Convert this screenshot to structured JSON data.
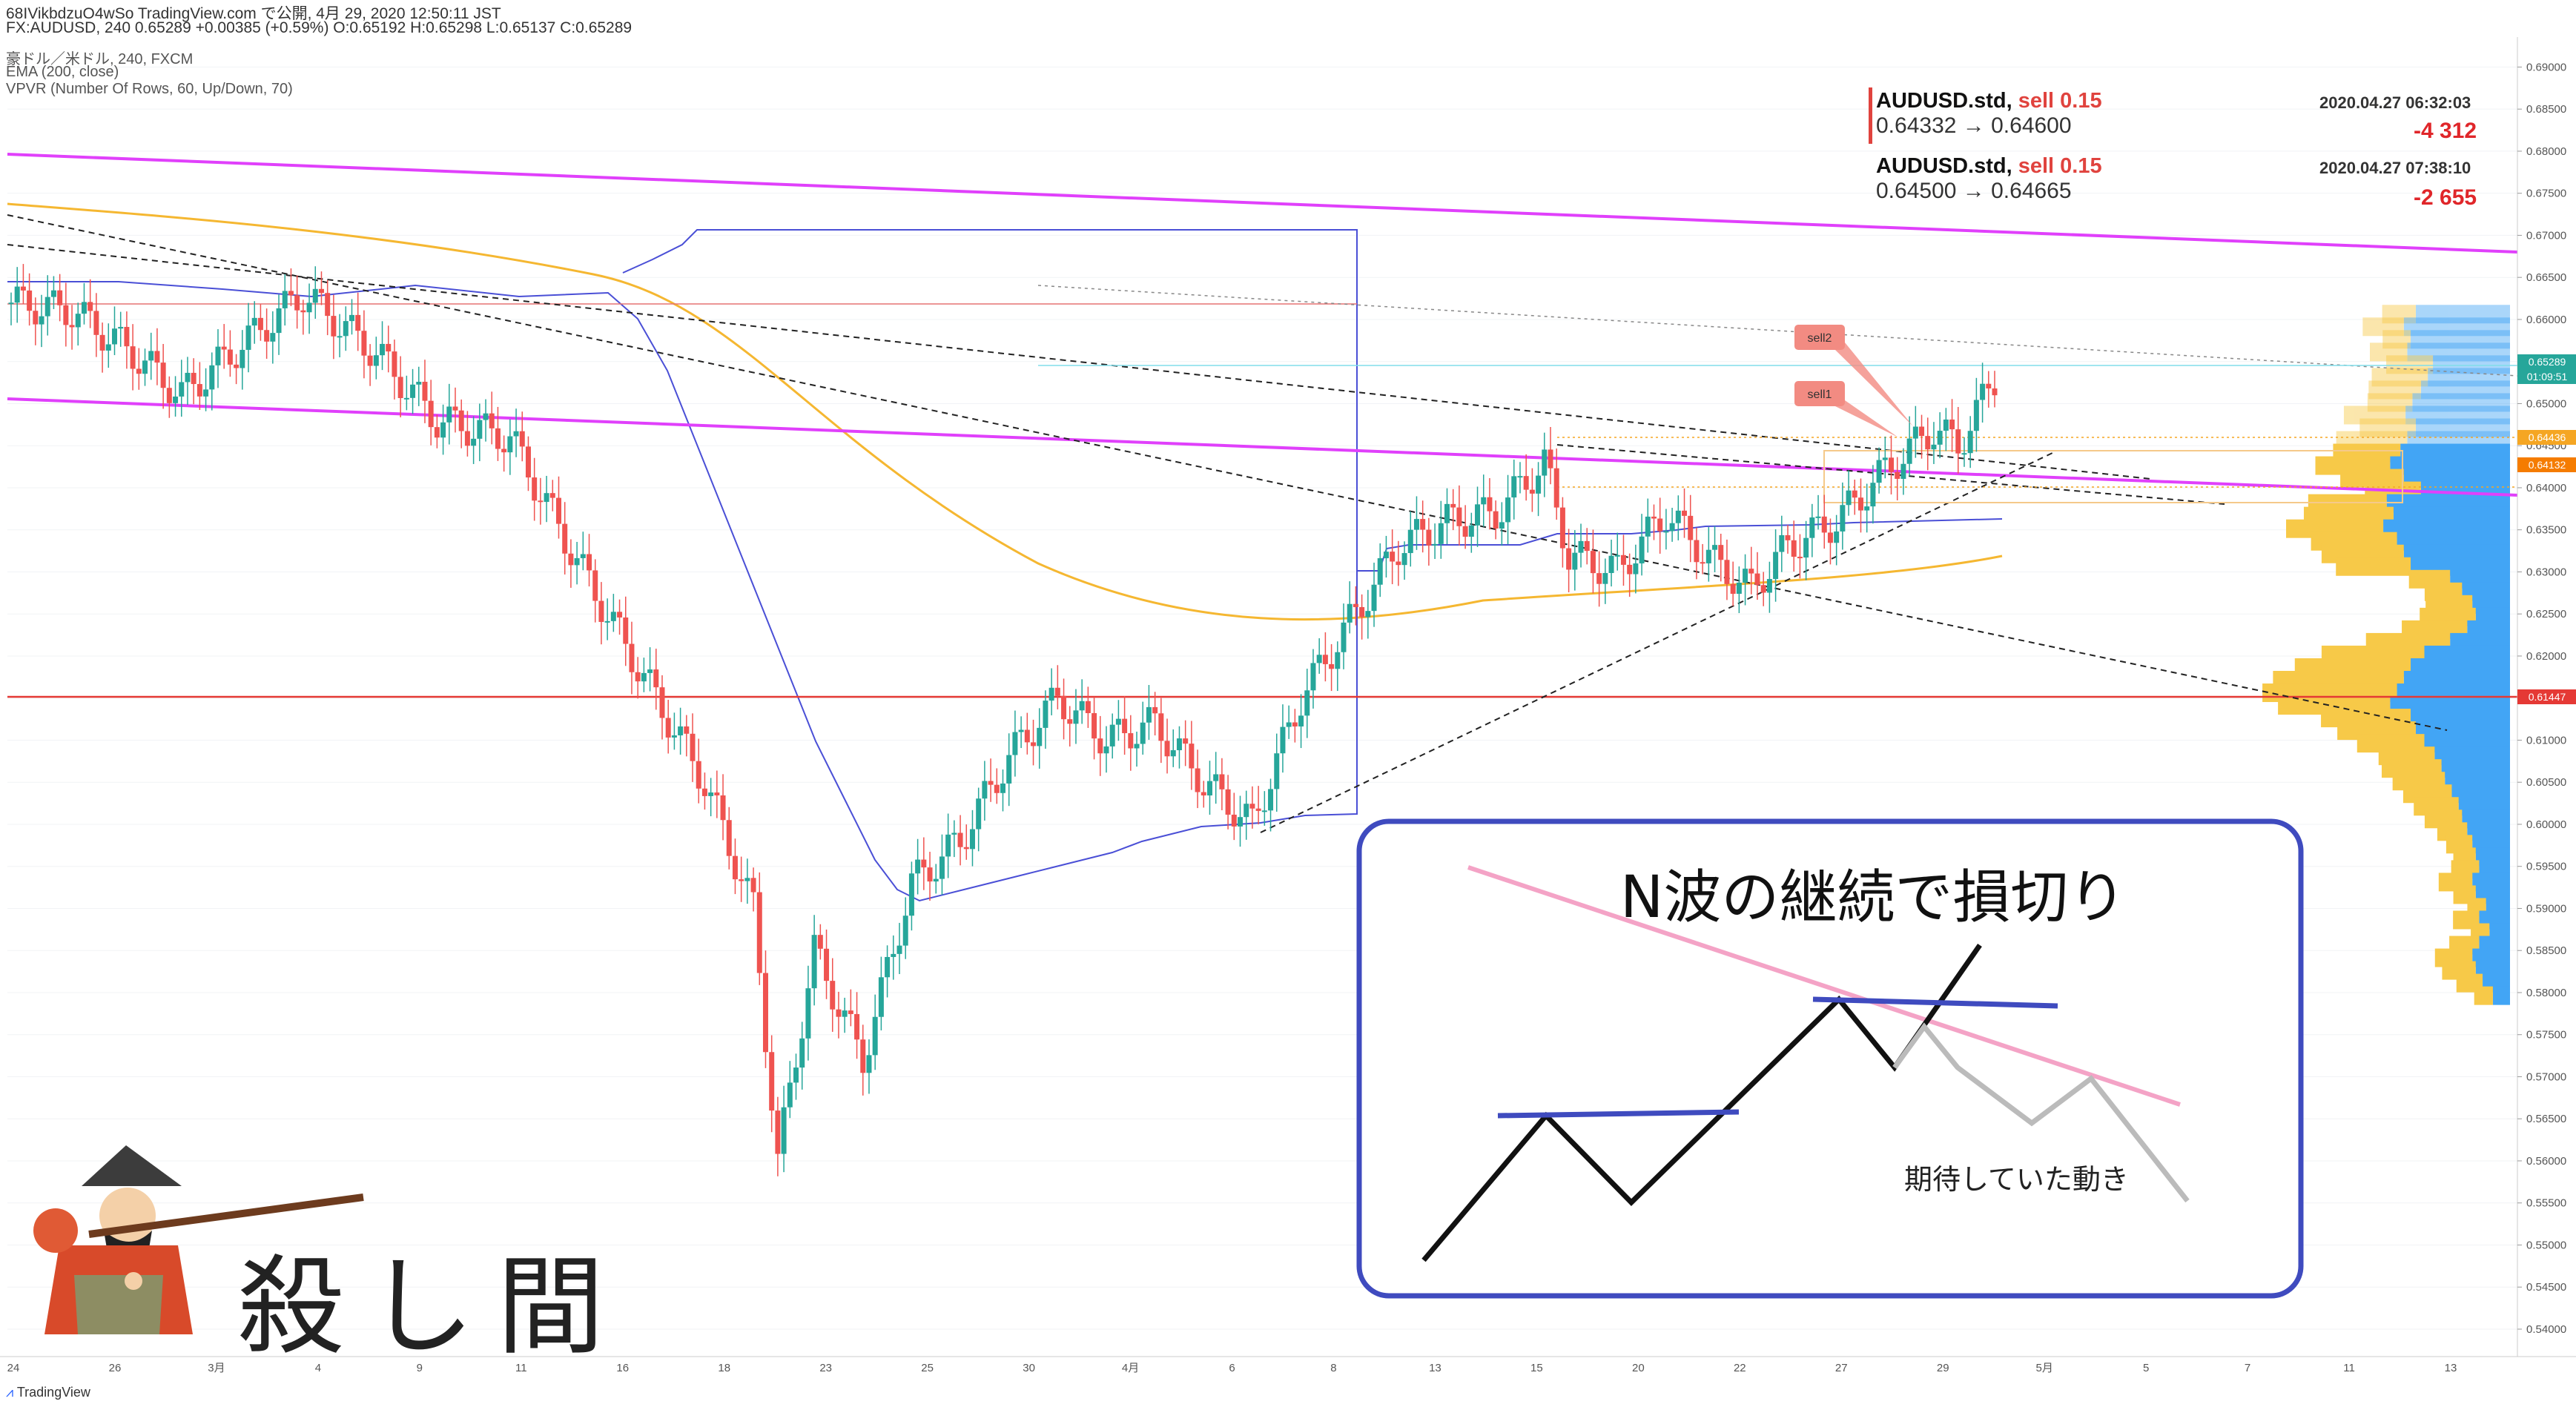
{
  "header": {
    "line1": "68IVikbdzuO4wSo TradingView.com で公開, 4月 29, 2020 12:50:11 JST",
    "line2": "FX:AUDUSD, 240 0.65289 +0.00385 (+0.59%) O:0.65192 H:0.65298 L:0.65137 C:0.65289"
  },
  "legend": {
    "symbol": "豪ドル／米ドル, 240, FXCM",
    "ema": "EMA (200, close)",
    "vpvr": "VPVR (Number Of Rows, 60, Up/Down, 70)"
  },
  "trades": [
    {
      "symbol": "AUDUSD.std,",
      "side": "sell 0.15",
      "prices": "0.64332 → 0.64600",
      "time": "2020.04.27 06:32:03",
      "pl": "-4 312"
    },
    {
      "symbol": "AUDUSD.std,",
      "side": "sell 0.15",
      "prices": "0.64500 → 0.64665",
      "time": "2020.04.27 07:38:10",
      "pl": "-2 655"
    }
  ],
  "annotations": {
    "sell1": "sell1",
    "sell2": "sell2",
    "inset_title": "N波の継続で損切り",
    "inset_caption": "期待していた動き",
    "brand_text": "殺し間"
  },
  "price_labels": {
    "last_price": "0.65289",
    "countdown": "01:09:51",
    "level_orange1": "0.64436",
    "level_orange2": "0.64132",
    "level_red": "0.61447"
  },
  "footer": {
    "logo": "TradingView"
  },
  "colors": {
    "candle_up": "#26a69a",
    "candle_down": "#ef5350",
    "ema": "#f5b731",
    "channel": "#e040fb",
    "support": "#e53935",
    "vp_up": "#42a5f5",
    "vp_down": "#f7c948",
    "inset_border": "#3f4bbf"
  },
  "chart_data": {
    "type": "candlestick",
    "symbol": "FX:AUDUSD",
    "timeframe": "240",
    "x_tick_labels": [
      "24",
      "26",
      "3月",
      "4",
      "9",
      "11",
      "16",
      "18",
      "23",
      "25",
      "30",
      "4月",
      "6",
      "8",
      "13",
      "15",
      "20",
      "22",
      "27",
      "29",
      "5月",
      "5",
      "7",
      "11",
      "13"
    ],
    "y_tick_labels": [
      "0.69000",
      "0.68500",
      "0.68000",
      "0.67500",
      "0.67000",
      "0.66500",
      "0.66000",
      "0.65500",
      "0.65000",
      "0.64500",
      "0.64000",
      "0.63500",
      "0.63000",
      "0.62500",
      "0.62000",
      "0.61500",
      "0.61000",
      "0.60500",
      "0.60000",
      "0.59500",
      "0.59000",
      "0.58500",
      "0.58000",
      "0.57500",
      "0.57000",
      "0.56500",
      "0.56000",
      "0.55500",
      "0.55000",
      "0.54500",
      "0.54000"
    ],
    "ylim": [
      0.5385,
      0.6918
    ],
    "close_path": [
      {
        "t": 0,
        "close": 0.662
      },
      {
        "t": 5,
        "close": 0.661
      },
      {
        "t": 10,
        "close": 0.656
      },
      {
        "t": 14,
        "close": 0.651
      },
      {
        "t": 19,
        "close": 0.657
      },
      {
        "t": 24,
        "close": 0.663
      },
      {
        "t": 30,
        "close": 0.656
      },
      {
        "t": 35,
        "close": 0.648
      },
      {
        "t": 41,
        "close": 0.646
      },
      {
        "t": 47,
        "close": 0.63
      },
      {
        "t": 53,
        "close": 0.615
      },
      {
        "t": 57,
        "close": 0.605
      },
      {
        "t": 61,
        "close": 0.59
      },
      {
        "t": 63,
        "close": 0.56
      },
      {
        "t": 66,
        "close": 0.585
      },
      {
        "t": 70,
        "close": 0.572
      },
      {
        "t": 74,
        "close": 0.593
      },
      {
        "t": 78,
        "close": 0.598
      },
      {
        "t": 82,
        "close": 0.608
      },
      {
        "t": 86,
        "close": 0.615
      },
      {
        "t": 90,
        "close": 0.61
      },
      {
        "t": 94,
        "close": 0.612
      },
      {
        "t": 98,
        "close": 0.605
      },
      {
        "t": 102,
        "close": 0.6
      },
      {
        "t": 106,
        "close": 0.615
      },
      {
        "t": 110,
        "close": 0.624
      },
      {
        "t": 114,
        "close": 0.633
      },
      {
        "t": 118,
        "close": 0.636
      },
      {
        "t": 122,
        "close": 0.637
      },
      {
        "t": 126,
        "close": 0.643
      },
      {
        "t": 128,
        "close": 0.632
      },
      {
        "t": 132,
        "close": 0.63
      },
      {
        "t": 136,
        "close": 0.637
      },
      {
        "t": 140,
        "close": 0.631
      },
      {
        "t": 143,
        "close": 0.628
      },
      {
        "t": 146,
        "close": 0.633
      },
      {
        "t": 150,
        "close": 0.636
      },
      {
        "t": 154,
        "close": 0.642
      },
      {
        "t": 158,
        "close": 0.647
      },
      {
        "t": 160,
        "close": 0.645
      },
      {
        "t": 163,
        "close": 0.6529
      }
    ],
    "levels": {
      "support": 0.61447,
      "orange1": 0.64436,
      "orange2": 0.64132,
      "last": 0.65289
    }
  }
}
